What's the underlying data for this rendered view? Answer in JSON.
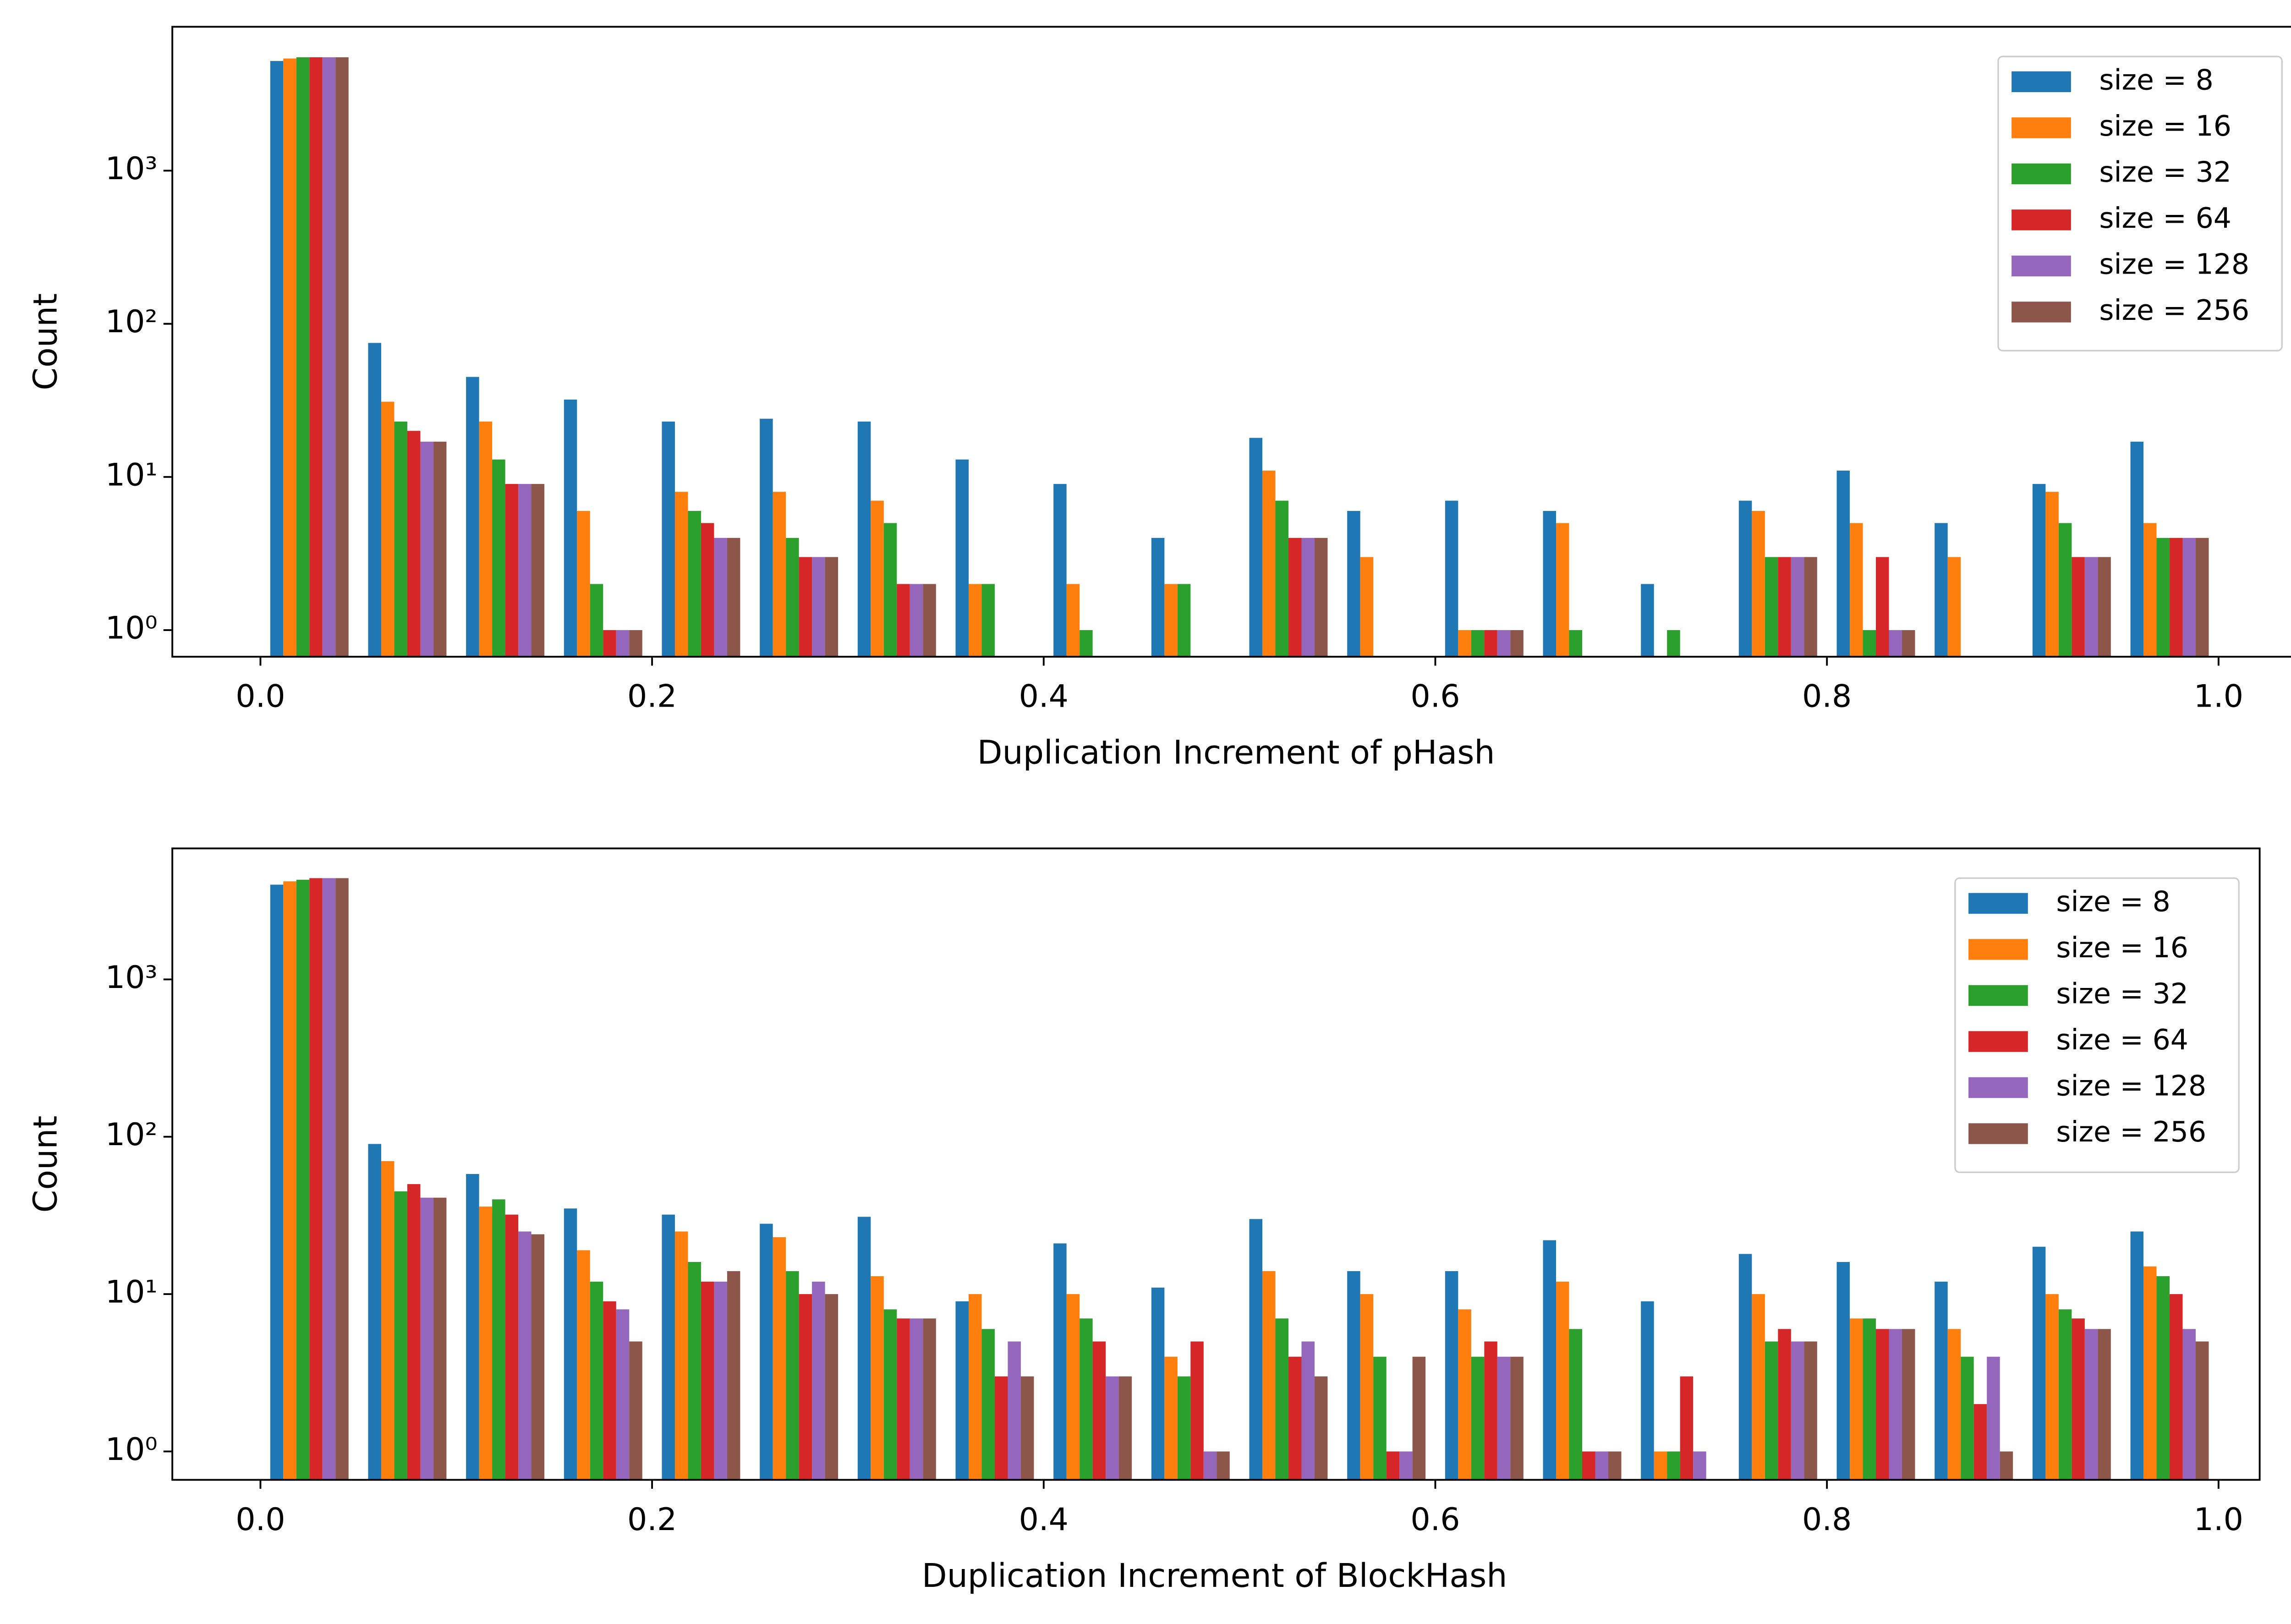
{
  "chart_data": [
    {
      "type": "histogram",
      "xlabel": "Duplication Increment of pHash",
      "ylabel": "Count",
      "log_y": true,
      "legend": "upper right",
      "bins": [
        0,
        0.05,
        0.1,
        0.15,
        0.2,
        0.25,
        0.3,
        0.35,
        0.4,
        0.45,
        0.5,
        0.55,
        0.6,
        0.65,
        0.7,
        0.75,
        0.8,
        0.85,
        0.9,
        0.95,
        1
      ],
      "xlim": [
        -0.045,
        1.043
      ],
      "xticks": [
        {
          "value": 0,
          "label": "0.0"
        },
        0.2,
        0.4,
        0.6,
        0.8,
        {
          "value": 1,
          "label": "1.0"
        }
      ],
      "ylim": [
        0.67,
        8700
      ],
      "yticks": [
        {
          "value": 1,
          "label": "10⁰"
        },
        {
          "value": 10,
          "label": "10¹"
        },
        {
          "value": 100,
          "label": "10²"
        },
        {
          "value": 1000,
          "label": "10³"
        }
      ],
      "series": [
        {
          "name": "size = 8",
          "color": "#1f77b4",
          "values": [
            5200,
            75,
            45,
            32,
            23,
            24,
            23,
            13,
            9,
            4,
            18,
            6,
            7,
            6,
            2,
            7,
            11,
            5,
            9,
            17
          ]
        },
        {
          "name": "size = 16",
          "color": "#ff7f0e",
          "values": [
            5400,
            31,
            23,
            6,
            8,
            8,
            7,
            2,
            2,
            2,
            11,
            3,
            1,
            5,
            0,
            6,
            5,
            3,
            8,
            5
          ]
        },
        {
          "name": "size = 32",
          "color": "#2ca02c",
          "values": [
            5500,
            23,
            13,
            2,
            6,
            4,
            5,
            2,
            1,
            2,
            7,
            0,
            1,
            1,
            1,
            3,
            1,
            0,
            5,
            4
          ]
        },
        {
          "name": "size = 64",
          "color": "#d62728",
          "values": [
            5500,
            20,
            9,
            1,
            5,
            3,
            2,
            0,
            0,
            0,
            4,
            0,
            1,
            0,
            0,
            3,
            3,
            0,
            3,
            4
          ]
        },
        {
          "name": "size = 128",
          "color": "#9467bd",
          "values": [
            5500,
            17,
            9,
            1,
            4,
            3,
            2,
            0,
            0,
            0,
            4,
            0,
            1,
            0,
            0,
            3,
            1,
            0,
            3,
            4
          ]
        },
        {
          "name": "size = 256",
          "color": "#8c564b",
          "values": [
            5500,
            17,
            9,
            1,
            4,
            3,
            2,
            0,
            0,
            0,
            4,
            0,
            1,
            0,
            0,
            3,
            1,
            0,
            3,
            4
          ]
        }
      ]
    },
    {
      "type": "histogram",
      "xlabel": "Duplication Increment of BlockHash",
      "ylabel": "Count",
      "log_y": true,
      "legend": "upper right",
      "bins": [
        0,
        0.05,
        0.1,
        0.15,
        0.2,
        0.25,
        0.3,
        0.35,
        0.4,
        0.45,
        0.5,
        0.55,
        0.6,
        0.65,
        0.7,
        0.75,
        0.8,
        0.85,
        0.9,
        0.95,
        1
      ],
      "xlim": [
        -0.045,
        1.021
      ],
      "xticks": [
        {
          "value": 0,
          "label": "0.0"
        },
        0.2,
        0.4,
        0.6,
        0.8,
        {
          "value": 1,
          "label": "1.0"
        }
      ],
      "ylim": [
        0.66,
        6800
      ],
      "yticks": [
        {
          "value": 1,
          "label": "10⁰"
        },
        {
          "value": 10,
          "label": "10¹"
        },
        {
          "value": 100,
          "label": "10²"
        },
        {
          "value": 1000,
          "label": "10³"
        }
      ],
      "series": [
        {
          "name": "size = 8",
          "color": "#1f77b4",
          "values": [
            4000,
            90,
            58,
            35,
            32,
            28,
            31,
            9,
            21,
            11,
            30,
            14,
            14,
            22,
            9,
            18,
            16,
            12,
            20,
            25
          ]
        },
        {
          "name": "size = 16",
          "color": "#ff7f0e",
          "values": [
            4200,
            70,
            36,
            19,
            25,
            23,
            13,
            10,
            10,
            4,
            14,
            10,
            8,
            12,
            1,
            10,
            7,
            6,
            10,
            15
          ]
        },
        {
          "name": "size = 32",
          "color": "#2ca02c",
          "values": [
            4300,
            45,
            40,
            12,
            16,
            14,
            8,
            6,
            7,
            3,
            7,
            4,
            4,
            6,
            1,
            5,
            7,
            4,
            8,
            13
          ]
        },
        {
          "name": "size = 64",
          "color": "#d62728",
          "values": [
            4400,
            50,
            32,
            9,
            12,
            10,
            7,
            3,
            5,
            5,
            4,
            1,
            5,
            1,
            3,
            6,
            6,
            2,
            7,
            10
          ]
        },
        {
          "name": "size = 128",
          "color": "#9467bd",
          "values": [
            4400,
            41,
            25,
            8,
            12,
            12,
            7,
            5,
            3,
            1,
            5,
            1,
            4,
            1,
            1,
            5,
            6,
            4,
            6,
            6
          ]
        },
        {
          "name": "size = 256",
          "color": "#8c564b",
          "values": [
            4400,
            41,
            24,
            5,
            14,
            10,
            7,
            3,
            3,
            1,
            3,
            4,
            4,
            1,
            0,
            5,
            6,
            1,
            6,
            5
          ]
        }
      ]
    }
  ]
}
